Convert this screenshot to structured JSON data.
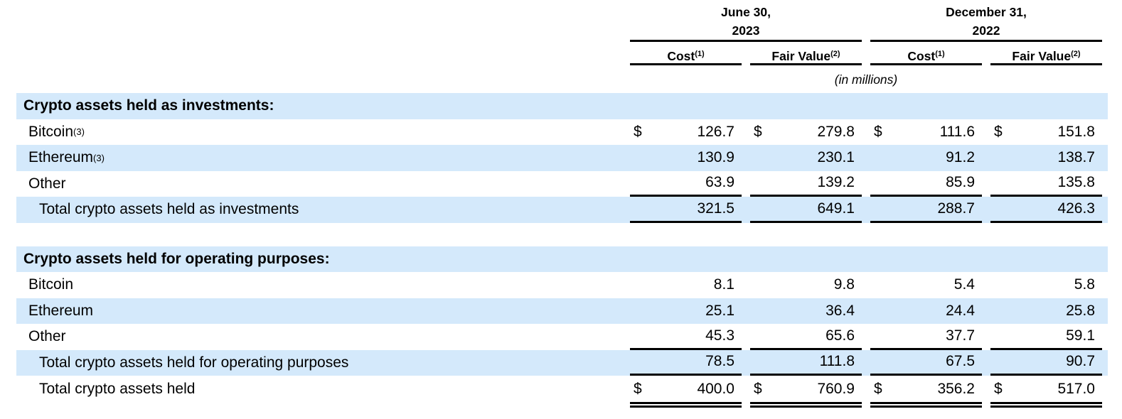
{
  "colors": {
    "row_highlight": "#d4e9fb",
    "rule": "#000000",
    "text": "#000000",
    "background": "#ffffff"
  },
  "table": {
    "dollar_sign": "$",
    "header": {
      "periods": [
        {
          "date": "June 30,",
          "year": "2023"
        },
        {
          "date": "December 31,",
          "year": "2022"
        }
      ],
      "columns": [
        {
          "label": "Cost",
          "sup": "(1)"
        },
        {
          "label": "Fair Value",
          "sup": "(2)"
        },
        {
          "label": "Cost",
          "sup": "(1)"
        },
        {
          "label": "Fair Value",
          "sup": "(2)"
        }
      ],
      "units_note": "(in millions)"
    },
    "rows": [
      {
        "kind": "section",
        "label": "Crypto assets held as investments:"
      },
      {
        "kind": "data",
        "label": "Bitcoin",
        "sup": "(3)",
        "values": [
          "126.7",
          "279.8",
          "111.6",
          "151.8"
        ]
      },
      {
        "kind": "data",
        "label": "Ethereum",
        "sup": "(3)",
        "values": [
          "130.9",
          "230.1",
          "91.2",
          "138.7"
        ]
      },
      {
        "kind": "data",
        "label": "Other",
        "values": [
          "63.9",
          "139.2",
          "85.9",
          "135.8"
        ]
      },
      {
        "kind": "total",
        "label": "Total crypto assets held as investments",
        "values": [
          "321.5",
          "649.1",
          "288.7",
          "426.3"
        ]
      },
      {
        "kind": "spacer"
      },
      {
        "kind": "section",
        "label": "Crypto assets held for operating purposes:"
      },
      {
        "kind": "data",
        "label": "Bitcoin",
        "values": [
          "8.1",
          "9.8",
          "5.4",
          "5.8"
        ]
      },
      {
        "kind": "data",
        "label": "Ethereum",
        "values": [
          "25.1",
          "36.4",
          "24.4",
          "25.8"
        ]
      },
      {
        "kind": "data",
        "label": "Other",
        "values": [
          "45.3",
          "65.6",
          "37.7",
          "59.1"
        ]
      },
      {
        "kind": "total",
        "label": "Total crypto assets held for operating purposes",
        "values": [
          "78.5",
          "111.8",
          "67.5",
          "90.7"
        ]
      },
      {
        "kind": "grand-total",
        "label": "Total crypto assets held",
        "values": [
          "400.0",
          "760.9",
          "356.2",
          "517.0"
        ]
      }
    ]
  }
}
